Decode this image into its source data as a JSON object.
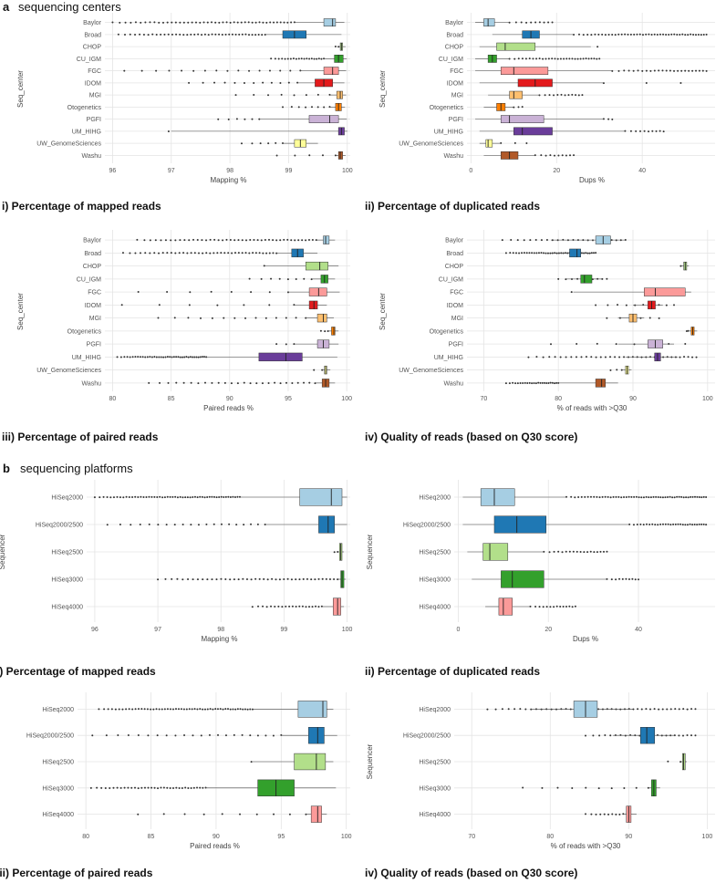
{
  "sections": [
    {
      "letter": "a",
      "title": "sequencing centers"
    },
    {
      "letter": "b",
      "title": "sequencing platforms"
    }
  ],
  "colors": {
    "Baylor": "#a6cee3",
    "Broad": "#1f78b4",
    "CHOP": "#b2df8a",
    "CU_IGM": "#33a02c",
    "FGC": "#fb9a99",
    "IDOM": "#e31a1c",
    "MGI": "#fdbf6f",
    "Otogenetics": "#ff7f00",
    "PGFI": "#cab2d6",
    "UM_HIHG": "#6a3d9a",
    "UW_GenomeSciences": "#ffff99",
    "Washu": "#b15928",
    "HiSeq2000": "#a6cee3",
    "HiSeq2000/2500": "#1f78b4",
    "HiSeq2500": "#b2df8a",
    "HiSeq3000": "#33a02c",
    "HiSeq4000": "#fb9a99"
  },
  "chart_data": [
    {
      "id": "a-i",
      "section": "a",
      "type": "box",
      "caption": "i) Percentage of mapped reads",
      "xlabel": "Mapping %",
      "ylabel": "Seq_center",
      "xlim": [
        95.9,
        100.05
      ],
      "xticks": [
        96,
        97,
        98,
        99,
        100
      ],
      "categories": [
        "Baylor",
        "Broad",
        "CHOP",
        "CU_IGM",
        "FGC",
        "IDOM",
        "MGI",
        "Otogenetics",
        "PGFI",
        "UM_HIHG",
        "UW_GenomeSciences",
        "Washu"
      ],
      "boxes": [
        {
          "lw": 99.1,
          "q1": 99.6,
          "med": 99.75,
          "q3": 99.8,
          "uw": 99.95
        },
        {
          "lw": 98.6,
          "q1": 98.9,
          "med": 99.1,
          "q3": 99.3,
          "uw": 99.9
        },
        {
          "lw": 99.85,
          "q1": 99.88,
          "med": 99.9,
          "q3": 99.92,
          "uw": 99.97
        },
        {
          "lw": 99.6,
          "q1": 99.78,
          "med": 99.85,
          "q3": 99.93,
          "uw": 99.99
        },
        {
          "lw": 99.2,
          "q1": 99.6,
          "med": 99.75,
          "q3": 99.85,
          "uw": 99.98
        },
        {
          "lw": 99.15,
          "q1": 99.45,
          "med": 99.6,
          "q3": 99.75,
          "uw": 99.95
        },
        {
          "lw": 99.7,
          "q1": 99.82,
          "med": 99.88,
          "q3": 99.92,
          "uw": 99.98
        },
        {
          "lw": 99.7,
          "q1": 99.8,
          "med": 99.85,
          "q3": 99.9,
          "uw": 99.96
        },
        {
          "lw": 98.5,
          "q1": 99.35,
          "med": 99.7,
          "q3": 99.85,
          "uw": 99.99
        },
        {
          "lw": 97.0,
          "q1": 99.85,
          "med": 99.9,
          "q3": 99.95,
          "uw": 100.0
        },
        {
          "lw": 98.9,
          "q1": 99.1,
          "med": 99.2,
          "q3": 99.3,
          "uw": 99.5
        },
        {
          "lw": 99.8,
          "q1": 99.85,
          "med": 99.88,
          "q3": 99.92,
          "uw": 99.97
        }
      ],
      "outliers": [
        {
          "min": 96.0,
          "max": 99.1,
          "n": 46
        },
        {
          "min": 96.1,
          "max": 98.6,
          "n": 40
        },
        {
          "min": 99.8,
          "max": 99.85,
          "n": 2
        },
        {
          "min": 98.7,
          "max": 99.6,
          "n": 20
        },
        {
          "min": 96.2,
          "max": 99.2,
          "n": 16
        },
        {
          "min": 97.3,
          "max": 99.15,
          "n": 12
        },
        {
          "min": 98.1,
          "max": 99.7,
          "n": 8
        },
        {
          "min": 98.9,
          "max": 99.7,
          "n": 8
        },
        {
          "min": 97.8,
          "max": 98.5,
          "n": 6
        },
        {
          "min": 96.9,
          "max": 97.0,
          "n": 1
        },
        {
          "min": 98.2,
          "max": 98.9,
          "n": 6
        },
        {
          "min": 98.8,
          "max": 99.8,
          "n": 5
        }
      ]
    },
    {
      "id": "a-ii",
      "section": "a",
      "type": "box",
      "caption": "ii) Percentage of duplicated reads",
      "xlabel": "Dups %",
      "ylabel": "Seq_center",
      "xlim": [
        -0.5,
        57
      ],
      "xticks": [
        0,
        20,
        40
      ],
      "categories": [
        "Baylor",
        "Broad",
        "CHOP",
        "CU_IGM",
        "FGC",
        "IDOM",
        "MGI",
        "Otogenetics",
        "PGFI",
        "UM_HIHG",
        "UW_GenomeSciences",
        "Washu"
      ],
      "boxes": [
        {
          "lw": 1,
          "q1": 3,
          "med": 4,
          "q3": 5.5,
          "uw": 9
        },
        {
          "lw": 5,
          "q1": 12,
          "med": 14,
          "q3": 16,
          "uw": 24
        },
        {
          "lw": 2,
          "q1": 6,
          "med": 8,
          "q3": 15,
          "uw": 28
        },
        {
          "lw": 1,
          "q1": 4,
          "med": 5,
          "q3": 6,
          "uw": 9
        },
        {
          "lw": 1,
          "q1": 7,
          "med": 10,
          "q3": 18,
          "uw": 33
        },
        {
          "lw": 2,
          "q1": 11,
          "med": 15,
          "q3": 19,
          "uw": 31
        },
        {
          "lw": 4,
          "q1": 9,
          "med": 10,
          "q3": 12,
          "uw": 16
        },
        {
          "lw": 3,
          "q1": 6,
          "med": 7,
          "q3": 8,
          "uw": 10
        },
        {
          "lw": 1,
          "q1": 7,
          "med": 9,
          "q3": 17,
          "uw": 31
        },
        {
          "lw": 2,
          "q1": 10,
          "med": 12,
          "q3": 19,
          "uw": 36
        },
        {
          "lw": 2,
          "q1": 3.5,
          "med": 4,
          "q3": 5,
          "uw": 7
        },
        {
          "lw": 3,
          "q1": 7,
          "med": 9,
          "q3": 11,
          "uw": 15
        }
      ],
      "outliers": [
        {
          "min": 9,
          "max": 19,
          "n": 10
        },
        {
          "min": 24,
          "max": 55,
          "n": 44
        },
        {
          "min": 29,
          "max": 30,
          "n": 1
        },
        {
          "min": 9,
          "max": 30,
          "n": 30
        },
        {
          "min": 33,
          "max": 55,
          "n": 24
        },
        {
          "min": 31,
          "max": 49,
          "n": 3
        },
        {
          "min": 16,
          "max": 26,
          "n": 12
        },
        {
          "min": 10,
          "max": 12,
          "n": 3
        },
        {
          "min": 31,
          "max": 33,
          "n": 3
        },
        {
          "min": 36,
          "max": 45,
          "n": 10
        },
        {
          "min": 7,
          "max": 13,
          "n": 3
        },
        {
          "min": 15,
          "max": 24,
          "n": 10
        }
      ]
    },
    {
      "id": "a-iii",
      "section": "a",
      "type": "box",
      "caption": "iii) Percentage of paired reads",
      "xlabel": "Paired reads %",
      "ylabel": "Seq_center",
      "xlim": [
        79.5,
        100.3
      ],
      "xticks": [
        80,
        85,
        90,
        95,
        100
      ],
      "categories": [
        "Baylor",
        "Broad",
        "CHOP",
        "CU_IGM",
        "FGC",
        "IDOM",
        "MGI",
        "Otogenetics",
        "PGFI",
        "UM_HIHG",
        "UW_GenomeSciences",
        "Washu"
      ],
      "boxes": [
        {
          "lw": 97.4,
          "q1": 98.0,
          "med": 98.2,
          "q3": 98.5,
          "uw": 99.0
        },
        {
          "lw": 94.0,
          "q1": 95.3,
          "med": 95.8,
          "q3": 96.3,
          "uw": 97.5
        },
        {
          "lw": 93.0,
          "q1": 96.5,
          "med": 97.7,
          "q3": 98.4,
          "uw": 99.3
        },
        {
          "lw": 97.0,
          "q1": 97.8,
          "med": 98.1,
          "q3": 98.4,
          "uw": 99.0
        },
        {
          "lw": 95.0,
          "q1": 96.8,
          "med": 97.6,
          "q3": 98.3,
          "uw": 99.4
        },
        {
          "lw": 95.5,
          "q1": 96.8,
          "med": 97.2,
          "q3": 97.5,
          "uw": 98.3
        },
        {
          "lw": 96.5,
          "q1": 97.5,
          "med": 98.0,
          "q3": 98.3,
          "uw": 98.9
        },
        {
          "lw": 98.4,
          "q1": 98.7,
          "med": 98.9,
          "q3": 99.0,
          "uw": 99.3
        },
        {
          "lw": 95.5,
          "q1": 97.5,
          "med": 98.0,
          "q3": 98.5,
          "uw": 99.3
        },
        {
          "lw": 88.0,
          "q1": 92.5,
          "med": 94.8,
          "q3": 96.2,
          "uw": 99.2
        },
        {
          "lw": 97.9,
          "q1": 98.1,
          "med": 98.2,
          "q3": 98.3,
          "uw": 98.6
        },
        {
          "lw": 97.3,
          "q1": 97.9,
          "med": 98.2,
          "q3": 98.5,
          "uw": 99.0
        }
      ],
      "outliers": [
        {
          "min": 82.1,
          "max": 97.4,
          "n": 44
        },
        {
          "min": 80.9,
          "max": 94.0,
          "n": 40
        },
        {
          "min": 92.9,
          "max": 93.0,
          "n": 1
        },
        {
          "min": 91.7,
          "max": 97.0,
          "n": 8
        },
        {
          "min": 82.2,
          "max": 95.0,
          "n": 8
        },
        {
          "min": 80.8,
          "max": 95.5,
          "n": 7
        },
        {
          "min": 83.9,
          "max": 96.5,
          "n": 14
        },
        {
          "min": 97.8,
          "max": 98.4,
          "n": 3
        },
        {
          "min": 94.0,
          "max": 95.5,
          "n": 3
        },
        {
          "min": 80.4,
          "max": 88.0,
          "n": 40
        },
        {
          "min": 97.2,
          "max": 97.9,
          "n": 2
        },
        {
          "min": 83.1,
          "max": 97.3,
          "n": 26
        }
      ]
    },
    {
      "id": "a-iv",
      "section": "a",
      "type": "box",
      "caption": "iv) Quality  of reads (based on Q30 score)",
      "xlabel": "% of reads with >Q30",
      "ylabel": "Seq_center",
      "xlim": [
        68,
        101
      ],
      "xticks": [
        70,
        80,
        90,
        100
      ],
      "categories": [
        "Baylor",
        "Broad",
        "CHOP",
        "CU_IGM",
        "FGC",
        "IDOM",
        "MGI",
        "Otogenetics",
        "PGFI",
        "UM_HIHG",
        "UW_GenomeSciences",
        "Washu"
      ],
      "boxes": [
        {
          "lw": 79.0,
          "q1": 85.0,
          "med": 86.0,
          "q3": 87.0,
          "uw": 89.0
        },
        {
          "lw": 79.0,
          "q1": 81.5,
          "med": 82.5,
          "q3": 83.0,
          "uw": 85.0
        },
        {
          "lw": 96.5,
          "q1": 96.8,
          "med": 97.0,
          "q3": 97.2,
          "uw": 97.5
        },
        {
          "lw": 81.0,
          "q1": 83.0,
          "med": 83.5,
          "q3": 84.5,
          "uw": 86.0
        },
        {
          "lw": 82.0,
          "q1": 91.5,
          "med": 93.0,
          "q3": 97.0,
          "uw": 97.8
        },
        {
          "lw": 90.0,
          "q1": 92.0,
          "med": 92.5,
          "q3": 93.0,
          "uw": 94.0
        },
        {
          "lw": 88.0,
          "q1": 89.5,
          "med": 90.0,
          "q3": 90.5,
          "uw": 91.5
        },
        {
          "lw": 97.4,
          "q1": 97.8,
          "med": 98.0,
          "q3": 98.2,
          "uw": 98.6
        },
        {
          "lw": 88.0,
          "q1": 92.0,
          "med": 93.0,
          "q3": 94.0,
          "uw": 95.5
        },
        {
          "lw": 89.0,
          "q1": 92.9,
          "med": 93.3,
          "q3": 93.7,
          "uw": 96.0
        },
        {
          "lw": 88.5,
          "q1": 89.0,
          "med": 89.2,
          "q3": 89.4,
          "uw": 89.8
        },
        {
          "lw": 80.0,
          "q1": 85.0,
          "med": 85.8,
          "q3": 86.3,
          "uw": 88.0
        }
      ],
      "outliers": [
        {
          "min": 72.5,
          "max": 89.0,
          "n": 24
        },
        {
          "min": 73.0,
          "max": 85.0,
          "n": 40
        },
        {
          "min": 96.3,
          "max": 96.5,
          "n": 1
        },
        {
          "min": 80.0,
          "max": 86.5,
          "n": 10
        },
        {
          "min": 81.5,
          "max": 82.0,
          "n": 1
        },
        {
          "min": 85.0,
          "max": 95.5,
          "n": 10
        },
        {
          "min": 86.5,
          "max": 93.5,
          "n": 6
        },
        {
          "min": 97.2,
          "max": 97.4,
          "n": 2
        },
        {
          "min": 79.0,
          "max": 97.0,
          "n": 8
        },
        {
          "min": 76.0,
          "max": 98.5,
          "n": 36
        },
        {
          "min": 87.0,
          "max": 88.5,
          "n": 3
        },
        {
          "min": 73.0,
          "max": 80.0,
          "n": 24
        }
      ]
    },
    {
      "id": "b-i",
      "section": "b",
      "type": "box",
      "caption": "i) Percentage of mapped reads",
      "xlabel": "Mapping %",
      "ylabel": "Sequencer",
      "xlim": [
        95.9,
        100.05
      ],
      "xticks": [
        96,
        97,
        98,
        99,
        100
      ],
      "categories": [
        "HiSeq2000",
        "HiSeq2000/2500",
        "HiSeq2500",
        "HiSeq3000",
        "HiSeq4000"
      ],
      "boxes": [
        {
          "lw": 98.3,
          "q1": 99.25,
          "med": 99.75,
          "q3": 99.92,
          "uw": 100.0
        },
        {
          "lw": 98.7,
          "q1": 99.55,
          "med": 99.7,
          "q3": 99.8,
          "uw": 100.0
        },
        {
          "lw": 99.85,
          "q1": 99.88,
          "med": 99.9,
          "q3": 99.92,
          "uw": 99.95
        },
        {
          "lw": 99.85,
          "q1": 99.9,
          "med": 99.92,
          "q3": 99.95,
          "uw": 99.98
        },
        {
          "lw": 99.6,
          "q1": 99.78,
          "med": 99.85,
          "q3": 99.9,
          "uw": 99.95
        }
      ],
      "outliers": [
        {
          "min": 96.0,
          "max": 98.3,
          "n": 55
        },
        {
          "min": 96.2,
          "max": 98.7,
          "n": 20
        },
        {
          "min": 99.8,
          "max": 99.85,
          "n": 2
        },
        {
          "min": 97.0,
          "max": 99.85,
          "n": 42
        },
        {
          "min": 98.5,
          "max": 99.6,
          "n": 20
        }
      ]
    },
    {
      "id": "b-ii",
      "section": "b",
      "type": "box",
      "caption": "ii) Percentage of duplicated reads",
      "xlabel": "Dups %",
      "ylabel": "Sequencer",
      "xlim": [
        -0.5,
        57
      ],
      "xticks": [
        0,
        20,
        40
      ],
      "categories": [
        "HiSeq2000",
        "HiSeq2000/2500",
        "HiSeq2500",
        "HiSeq3000",
        "HiSeq4000"
      ],
      "boxes": [
        {
          "lw": 1,
          "q1": 5,
          "med": 8,
          "q3": 12.5,
          "uw": 24
        },
        {
          "lw": 1,
          "q1": 8,
          "med": 13,
          "q3": 19.5,
          "uw": 38
        },
        {
          "lw": 2,
          "q1": 5.5,
          "med": 7,
          "q3": 11,
          "uw": 19
        },
        {
          "lw": 3,
          "q1": 9.5,
          "med": 12,
          "q3": 19,
          "uw": 33
        },
        {
          "lw": 6,
          "q1": 9,
          "med": 10,
          "q3": 12,
          "uw": 16
        }
      ],
      "outliers": [
        {
          "min": 24,
          "max": 55,
          "n": 55
        },
        {
          "min": 38,
          "max": 55,
          "n": 30
        },
        {
          "min": 19,
          "max": 33,
          "n": 18
        },
        {
          "min": 33,
          "max": 40,
          "n": 10
        },
        {
          "min": 16,
          "max": 26,
          "n": 14
        }
      ]
    },
    {
      "id": "b-iii",
      "section": "b",
      "type": "box",
      "caption": "iii) Percentage of paired reads",
      "xlabel": "Paired reads %",
      "ylabel": "Sequencer",
      "xlim": [
        79.5,
        100.3
      ],
      "xticks": [
        80,
        85,
        90,
        95,
        100
      ],
      "categories": [
        "HiSeq2000",
        "HiSeq2000/2500",
        "HiSeq2500",
        "HiSeq3000",
        "HiSeq4000"
      ],
      "boxes": [
        {
          "lw": 92.8,
          "q1": 96.3,
          "med": 98.2,
          "q3": 98.5,
          "uw": 99.0
        },
        {
          "lw": 95.0,
          "q1": 97.1,
          "med": 97.8,
          "q3": 98.3,
          "uw": 99.3
        },
        {
          "lw": 92.8,
          "q1": 96.0,
          "med": 97.7,
          "q3": 98.4,
          "uw": 99.0
        },
        {
          "lw": 89.2,
          "q1": 93.2,
          "med": 94.6,
          "q3": 96.0,
          "uw": 99.2
        },
        {
          "lw": 96.9,
          "q1": 97.3,
          "med": 97.8,
          "q3": 98.1,
          "uw": 98.5
        }
      ],
      "outliers": [
        {
          "min": 81.0,
          "max": 92.8,
          "n": 55
        },
        {
          "min": 80.5,
          "max": 95.0,
          "n": 22
        },
        {
          "min": 92.6,
          "max": 92.8,
          "n": 1
        },
        {
          "min": 80.4,
          "max": 89.2,
          "n": 35
        },
        {
          "min": 84.0,
          "max": 96.9,
          "n": 10
        }
      ]
    },
    {
      "id": "b-iv",
      "section": "b",
      "type": "box",
      "caption": "iv) Quality  of reads (based on Q30 score)",
      "xlabel": "% of reads with >Q30",
      "ylabel": "Sequencer",
      "xlim": [
        68,
        101
      ],
      "xticks": [
        70,
        80,
        90,
        100
      ],
      "categories": [
        "HiSeq2000",
        "HiSeq2000/2500",
        "HiSeq2500",
        "HiSeq3000",
        "HiSeq4000"
      ],
      "boxes": [
        {
          "lw": 77.5,
          "q1": 83.0,
          "med": 84.5,
          "q3": 86.0,
          "uw": 90.5
        },
        {
          "lw": 88.0,
          "q1": 91.5,
          "med": 92.3,
          "q3": 93.3,
          "uw": 96.0
        },
        {
          "lw": 96.7,
          "q1": 96.85,
          "med": 97.0,
          "q3": 97.2,
          "uw": 97.4
        },
        {
          "lw": 92.5,
          "q1": 92.9,
          "med": 93.2,
          "q3": 93.5,
          "uw": 94.0
        },
        {
          "lw": 89.3,
          "q1": 89.7,
          "med": 90.0,
          "q3": 90.3,
          "uw": 91.0
        }
      ],
      "outliers": [
        {
          "min": 72.0,
          "max": 98.5,
          "n": 45
        },
        {
          "min": 84.5,
          "max": 98.5,
          "n": 24
        },
        {
          "min": 95.0,
          "max": 96.6,
          "n": 2
        },
        {
          "min": 76.5,
          "max": 92.5,
          "n": 10
        },
        {
          "min": 84.5,
          "max": 89.3,
          "n": 10
        }
      ]
    }
  ]
}
